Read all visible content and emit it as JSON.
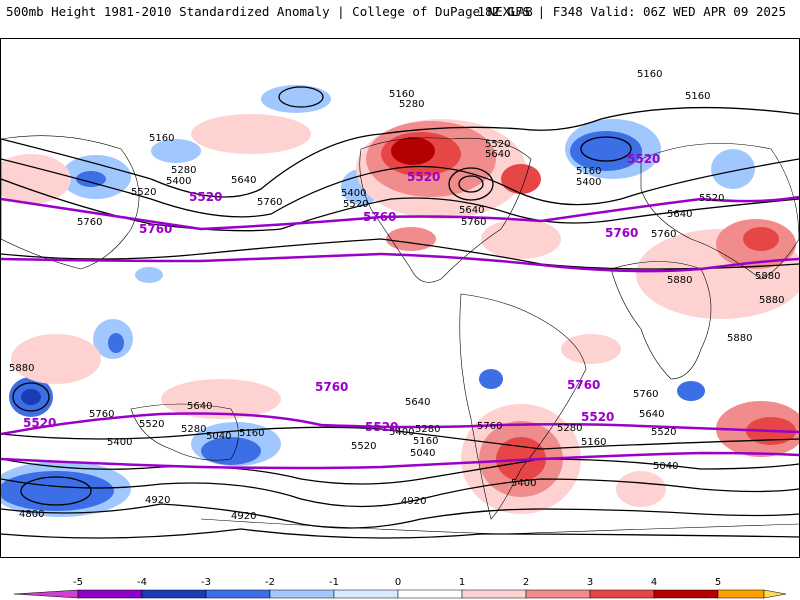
{
  "header": {
    "title_left": "500mb Height 1981-2010 Standardized Anomaly | College of DuPage NEXLAB",
    "title_right": "18Z GFS | F348 Valid: 06Z WED APR 09 2025"
  },
  "map": {
    "height_contours_dam": [
      4800,
      4920,
      5040,
      5160,
      5280,
      5400,
      5520,
      5640,
      5760,
      5880
    ],
    "highlighted_contours": [
      5520,
      5760
    ],
    "contour_labels_visible": [
      "5160",
      "5280",
      "5400",
      "5520",
      "5640",
      "5760",
      "5880",
      "5040",
      "4920",
      "4800"
    ],
    "colors": {
      "highlight_contour": "#9b00c9",
      "contour": "#000000",
      "coastline": "#000000"
    }
  },
  "colorbar": {
    "ticks": [
      "-5",
      "-4",
      "-3",
      "-2",
      "-1",
      "0",
      "1",
      "2",
      "3",
      "4",
      "5"
    ],
    "colors": [
      "#d040d0",
      "#8c00c8",
      "#1a3cb4",
      "#3c6ee6",
      "#a0c8ff",
      "#d8e8ff",
      "#ffffff",
      "#ffd2d2",
      "#f08c8c",
      "#e64646",
      "#b40000",
      "#ffa000",
      "#ffdc50"
    ]
  }
}
